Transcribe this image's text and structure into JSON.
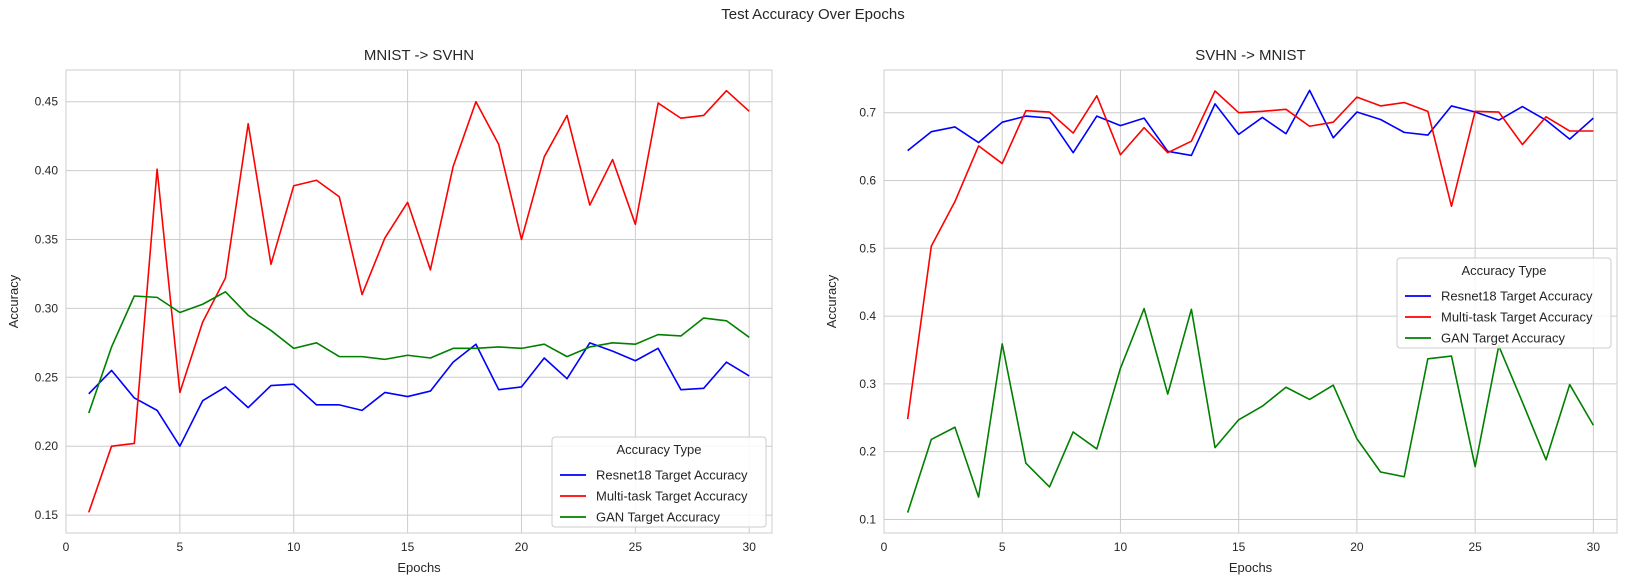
{
  "figure": {
    "suptitle": "Test Accuracy Over Epochs"
  },
  "chart_data": [
    {
      "type": "line",
      "title": "MNIST -> SVHN",
      "xlabel": "Epochs",
      "ylabel": "Accuracy",
      "xlim": [
        0,
        31
      ],
      "ylim": [
        0.137,
        0.473
      ],
      "xticks": [
        0,
        5,
        10,
        15,
        20,
        25,
        30
      ],
      "yticks": [
        0.15,
        0.2,
        0.25,
        0.3,
        0.35,
        0.4,
        0.45
      ],
      "ytick_labels": [
        "0.15",
        "0.20",
        "0.25",
        "0.30",
        "0.35",
        "0.40",
        "0.45"
      ],
      "grid": true,
      "legend": {
        "title": "Accuracy Type",
        "placement": "lower right"
      },
      "x": [
        1,
        2,
        3,
        4,
        5,
        6,
        7,
        8,
        9,
        10,
        11,
        12,
        13,
        14,
        15,
        16,
        17,
        18,
        19,
        20,
        21,
        22,
        23,
        24,
        25,
        26,
        27,
        28,
        29,
        30
      ],
      "series": [
        {
          "name": "Resnet18 Target Accuracy",
          "color": "#0000ff",
          "values": [
            0.238,
            0.255,
            0.235,
            0.226,
            0.2,
            0.233,
            0.243,
            0.228,
            0.244,
            0.245,
            0.23,
            0.23,
            0.226,
            0.239,
            0.236,
            0.24,
            0.261,
            0.274,
            0.241,
            0.243,
            0.264,
            0.249,
            0.275,
            0.269,
            0.262,
            0.271,
            0.241,
            0.242,
            0.261,
            0.251
          ]
        },
        {
          "name": "Multi-task Target Accuracy",
          "color": "#ff0000",
          "values": [
            0.152,
            0.2,
            0.202,
            0.401,
            0.239,
            0.29,
            0.322,
            0.434,
            0.332,
            0.389,
            0.393,
            0.381,
            0.31,
            0.351,
            0.377,
            0.328,
            0.403,
            0.45,
            0.419,
            0.35,
            0.41,
            0.44,
            0.375,
            0.408,
            0.361,
            0.449,
            0.438,
            0.44,
            0.458,
            0.443
          ]
        },
        {
          "name": "GAN Target Accuracy",
          "color": "#008000",
          "values": [
            0.224,
            0.272,
            0.309,
            0.308,
            0.297,
            0.303,
            0.312,
            0.295,
            0.284,
            0.271,
            0.275,
            0.265,
            0.265,
            0.263,
            0.266,
            0.264,
            0.271,
            0.271,
            0.272,
            0.271,
            0.274,
            0.265,
            0.272,
            0.275,
            0.274,
            0.281,
            0.28,
            0.293,
            0.291,
            0.279
          ]
        }
      ]
    },
    {
      "type": "line",
      "title": "SVHN -> MNIST",
      "xlabel": "Epochs",
      "ylabel": "Accuracy",
      "xlim": [
        0,
        31
      ],
      "ylim": [
        0.08,
        0.763
      ],
      "xticks": [
        0,
        5,
        10,
        15,
        20,
        25,
        30
      ],
      "yticks": [
        0.1,
        0.2,
        0.3,
        0.4,
        0.5,
        0.6,
        0.7
      ],
      "ytick_labels": [
        "0.1",
        "0.2",
        "0.3",
        "0.4",
        "0.5",
        "0.6",
        "0.7"
      ],
      "grid": true,
      "legend": {
        "title": "Accuracy Type",
        "placement": "center right"
      },
      "x": [
        1,
        2,
        3,
        4,
        5,
        6,
        7,
        8,
        9,
        10,
        11,
        12,
        13,
        14,
        15,
        16,
        17,
        18,
        19,
        20,
        21,
        22,
        23,
        24,
        25,
        26,
        27,
        28,
        29,
        30
      ],
      "series": [
        {
          "name": "Resnet18 Target Accuracy",
          "color": "#0000ff",
          "values": [
            0.644,
            0.672,
            0.679,
            0.656,
            0.686,
            0.695,
            0.692,
            0.641,
            0.695,
            0.681,
            0.692,
            0.643,
            0.637,
            0.713,
            0.668,
            0.693,
            0.669,
            0.733,
            0.663,
            0.701,
            0.69,
            0.671,
            0.667,
            0.71,
            0.701,
            0.689,
            0.709,
            0.689,
            0.661,
            0.692
          ]
        },
        {
          "name": "Multi-task Target Accuracy",
          "color": "#ff0000",
          "values": [
            0.248,
            0.503,
            0.569,
            0.651,
            0.625,
            0.703,
            0.701,
            0.67,
            0.725,
            0.638,
            0.678,
            0.641,
            0.658,
            0.732,
            0.7,
            0.702,
            0.705,
            0.68,
            0.686,
            0.723,
            0.71,
            0.715,
            0.702,
            0.562,
            0.702,
            0.701,
            0.653,
            0.694,
            0.673,
            0.673
          ]
        },
        {
          "name": "GAN Target Accuracy",
          "color": "#008000",
          "values": [
            0.11,
            0.218,
            0.236,
            0.133,
            0.359,
            0.183,
            0.148,
            0.229,
            0.204,
            0.323,
            0.411,
            0.285,
            0.41,
            0.206,
            0.247,
            0.267,
            0.295,
            0.277,
            0.298,
            0.219,
            0.17,
            0.163,
            0.337,
            0.341,
            0.178,
            0.356,
            0.273,
            0.188,
            0.299,
            0.239
          ]
        }
      ]
    }
  ]
}
